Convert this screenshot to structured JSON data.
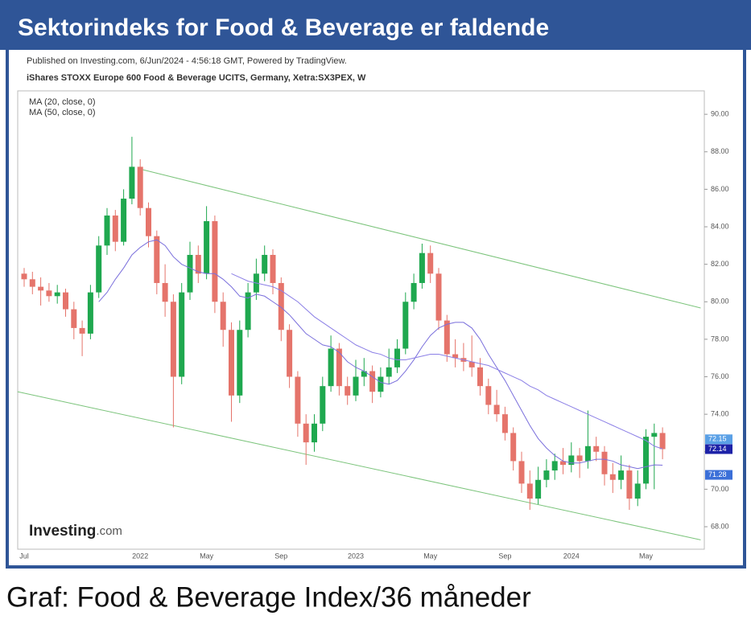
{
  "header": {
    "title": "Sektorindeks for Food & Beverage er faldende"
  },
  "chart_data": {
    "type": "candlestick",
    "attribution": "Published on Investing.com, 6/Jun/2024 - 4:56:18 GMT, Powered by TradingView.",
    "subtitle": "iShares STOXX Europe 600 Food & Beverage UCITS, Germany, Xetra:SX3PEX, W",
    "categories": [
      "Jul",
      null,
      null,
      null,
      null,
      null,
      null,
      null,
      null,
      null,
      null,
      null,
      null,
      null,
      "2022",
      null,
      null,
      null,
      null,
      null,
      null,
      null,
      "May",
      null,
      null,
      null,
      null,
      null,
      null,
      null,
      null,
      "Sep",
      null,
      null,
      null,
      null,
      null,
      null,
      null,
      null,
      "2023",
      null,
      null,
      null,
      null,
      null,
      null,
      null,
      null,
      "May",
      null,
      null,
      null,
      null,
      null,
      null,
      null,
      null,
      "Sep",
      null,
      null,
      null,
      null,
      null,
      null,
      null,
      "2024",
      null,
      null,
      null,
      null,
      null,
      null,
      null,
      null,
      "May",
      null,
      null
    ],
    "open": [
      81.5,
      81.2,
      80.8,
      80.6,
      80.3,
      80.5,
      79.6,
      78.6,
      78.3,
      80.5,
      83.0,
      84.6,
      83.2,
      85.5,
      87.2,
      85.0,
      83.5,
      81.0,
      80.0,
      76.0,
      80.5,
      82.5,
      81.5,
      84.3,
      80.0,
      78.5,
      75.0,
      78.5,
      80.5,
      81.5,
      82.5,
      81.0,
      78.5,
      76.0,
      73.5,
      72.5,
      73.5,
      75.5,
      77.5,
      75.5,
      75.0,
      76.0,
      76.3,
      75.2,
      76.0,
      76.5,
      77.5,
      80.0,
      81.0,
      82.6,
      81.5,
      79.0,
      77.2,
      77.0,
      76.8,
      76.5,
      75.5,
      74.5,
      74.0,
      73.0,
      71.5,
      70.3,
      69.5,
      70.5,
      71.0,
      71.5,
      71.3,
      71.8,
      71.5,
      72.3,
      72.0,
      70.8,
      70.5,
      71.0,
      69.5,
      70.3,
      72.8,
      73.0
    ],
    "high": [
      81.8,
      81.6,
      81.3,
      81.0,
      80.9,
      80.7,
      80.0,
      79.0,
      80.9,
      83.5,
      85.0,
      84.9,
      86.0,
      88.8,
      87.6,
      85.3,
      83.8,
      82.0,
      80.4,
      81.0,
      83.2,
      83.0,
      85.1,
      84.6,
      80.5,
      78.9,
      79.0,
      81.0,
      82.3,
      83.0,
      82.8,
      81.3,
      78.8,
      76.3,
      74.0,
      74.0,
      76.0,
      78.2,
      77.8,
      76.0,
      76.9,
      77.0,
      76.6,
      76.5,
      77.5,
      78.0,
      80.5,
      81.5,
      83.1,
      83.0,
      81.8,
      79.3,
      78.0,
      77.8,
      78.2,
      77.0,
      75.9,
      75.3,
      74.4,
      73.3,
      72.0,
      71.0,
      71.2,
      71.6,
      71.9,
      72.2,
      72.5,
      72.2,
      74.2,
      72.8,
      72.3,
      71.4,
      71.8,
      71.3,
      71.0,
      73.2,
      73.5,
      73.3
    ],
    "low": [
      80.8,
      80.4,
      79.8,
      80.0,
      79.9,
      79.2,
      78.0,
      77.1,
      78.0,
      80.2,
      82.5,
      82.7,
      83.0,
      85.2,
      84.6,
      82.9,
      80.4,
      79.2,
      73.3,
      75.6,
      80.1,
      81.0,
      81.2,
      79.4,
      77.6,
      73.6,
      74.6,
      78.1,
      80.1,
      81.1,
      80.4,
      77.9,
      75.4,
      72.8,
      71.3,
      72.0,
      73.1,
      75.2,
      75.0,
      74.5,
      74.7,
      75.5,
      74.6,
      74.9,
      75.6,
      76.2,
      77.2,
      79.6,
      80.7,
      81.0,
      78.5,
      76.8,
      76.5,
      76.3,
      76.0,
      75.0,
      74.0,
      73.6,
      72.6,
      71.0,
      69.8,
      68.9,
      69.2,
      70.1,
      70.5,
      70.8,
      70.9,
      70.6,
      71.1,
      71.5,
      70.2,
      69.8,
      70.0,
      68.9,
      69.1,
      70.0,
      70.0,
      71.6
    ],
    "close": [
      81.2,
      80.8,
      80.6,
      80.3,
      80.5,
      79.6,
      78.6,
      78.3,
      80.5,
      83.0,
      84.6,
      83.2,
      85.5,
      87.2,
      85.0,
      83.5,
      81.0,
      80.0,
      76.0,
      80.5,
      82.5,
      81.5,
      84.3,
      80.0,
      78.5,
      75.0,
      78.5,
      80.5,
      81.5,
      82.5,
      81.0,
      78.5,
      76.0,
      73.5,
      72.5,
      73.5,
      75.5,
      77.5,
      75.5,
      75.0,
      76.0,
      76.3,
      75.2,
      76.0,
      76.5,
      77.5,
      80.0,
      81.0,
      82.6,
      81.5,
      79.0,
      77.2,
      77.0,
      76.8,
      76.5,
      75.5,
      74.5,
      74.0,
      73.0,
      71.5,
      70.3,
      69.5,
      70.5,
      71.0,
      71.5,
      71.3,
      71.8,
      71.5,
      72.3,
      72.0,
      70.8,
      70.5,
      71.0,
      69.5,
      70.3,
      72.8,
      73.0,
      72.14
    ],
    "up_color": "#1fa84f",
    "down_color": "#e5746b",
    "series": [
      {
        "name": "MA (20, close, 0)",
        "color": "#7a6fdc",
        "values": [
          null,
          null,
          null,
          null,
          null,
          null,
          null,
          null,
          null,
          80.0,
          80.5,
          81.2,
          81.8,
          82.5,
          82.9,
          83.2,
          83.3,
          83.0,
          82.4,
          82.0,
          81.8,
          81.6,
          81.5,
          81.5,
          81.2,
          80.8,
          80.3,
          80.2,
          80.4,
          80.3,
          80.0,
          79.7,
          79.3,
          78.8,
          78.3,
          78.0,
          77.7,
          77.6,
          77.3,
          76.8,
          76.5,
          76.3,
          76.0,
          75.7,
          75.6,
          75.8,
          76.3,
          76.9,
          77.6,
          78.2,
          78.6,
          78.8,
          78.9,
          78.9,
          78.6,
          78.0,
          77.2,
          76.5,
          75.8,
          75.0,
          74.2,
          73.4,
          72.7,
          72.2,
          71.8,
          71.5,
          71.4,
          71.4,
          71.5,
          71.6,
          71.6,
          71.5,
          71.3,
          71.2,
          71.1,
          71.2,
          71.3,
          71.28
        ]
      },
      {
        "name": "MA (50, close, 0)",
        "color": "#8b7fe6",
        "values": [
          null,
          null,
          null,
          null,
          null,
          null,
          null,
          null,
          null,
          null,
          null,
          null,
          null,
          null,
          null,
          null,
          null,
          null,
          null,
          null,
          null,
          null,
          null,
          null,
          null,
          81.5,
          81.3,
          81.1,
          81.0,
          80.9,
          80.8,
          80.6,
          80.3,
          80.0,
          79.6,
          79.2,
          78.9,
          78.6,
          78.3,
          78.0,
          77.7,
          77.5,
          77.3,
          77.2,
          77.0,
          76.9,
          76.9,
          77.0,
          77.1,
          77.2,
          77.2,
          77.1,
          77.0,
          76.9,
          76.8,
          76.7,
          76.6,
          76.4,
          76.2,
          76.0,
          75.8,
          75.5,
          75.3,
          75.0,
          74.8,
          74.6,
          74.4,
          74.2,
          74.0,
          73.8,
          73.6,
          73.4,
          73.2,
          73.0,
          72.8,
          72.6,
          72.3,
          72.15
        ]
      }
    ],
    "trendlines": [
      {
        "x": [
          13.8,
          81.6
        ],
        "y": [
          87.1,
          79.67
        ],
        "color": "#7cc47c"
      },
      {
        "x": [
          -0.8,
          81.6
        ],
        "y": [
          75.2,
          67.3
        ],
        "color": "#7cc47c"
      }
    ],
    "price_tags": [
      {
        "value": 72.15,
        "label": "72.15",
        "color": "#5aa0e6"
      },
      {
        "value": 72.14,
        "label": "72.14",
        "color": "#1d22a8"
      },
      {
        "value": 71.28,
        "label": "71.28",
        "color": "#3b6fd8"
      }
    ],
    "ylim": [
      66.8,
      91.25
    ],
    "yticks": [
      {
        "value": 68,
        "label": "68.00"
      },
      {
        "value": 70,
        "label": "70.00"
      },
      {
        "value": 72,
        "label": "72.00"
      },
      {
        "value": 74,
        "label": "74.00"
      },
      {
        "value": 76,
        "label": "76.00"
      },
      {
        "value": 78,
        "label": "78.00"
      },
      {
        "value": 80,
        "label": "80.00"
      },
      {
        "value": 82,
        "label": "82.00"
      },
      {
        "value": 84,
        "label": "84.00"
      },
      {
        "value": 86,
        "label": "86.00"
      },
      {
        "value": 88,
        "label": "88.00"
      },
      {
        "value": 90,
        "label": "90.00"
      }
    ],
    "watermark": {
      "brand": "Investing",
      "suffix": ".com"
    }
  },
  "caption": "Graf: Food & Beverage Index/36 måneder"
}
